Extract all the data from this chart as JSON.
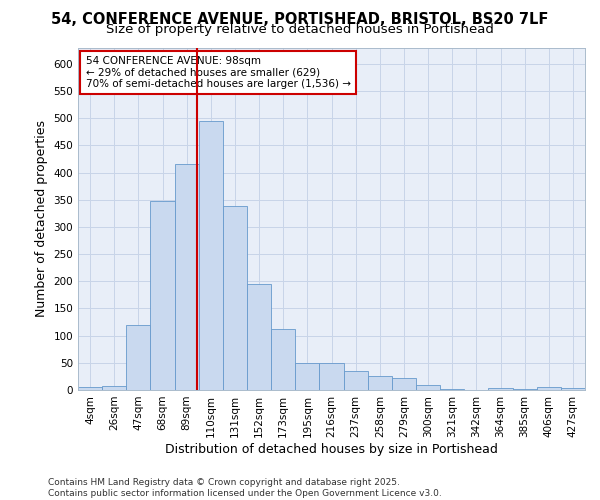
{
  "title_line1": "54, CONFERENCE AVENUE, PORTISHEAD, BRISTOL, BS20 7LF",
  "title_line2": "Size of property relative to detached houses in Portishead",
  "xlabel": "Distribution of detached houses by size in Portishead",
  "ylabel": "Number of detached properties",
  "categories": [
    "4sqm",
    "26sqm",
    "47sqm",
    "68sqm",
    "89sqm",
    "110sqm",
    "131sqm",
    "152sqm",
    "173sqm",
    "195sqm",
    "216sqm",
    "237sqm",
    "258sqm",
    "279sqm",
    "300sqm",
    "321sqm",
    "342sqm",
    "364sqm",
    "385sqm",
    "406sqm",
    "427sqm"
  ],
  "values": [
    5,
    7,
    120,
    348,
    415,
    495,
    338,
    195,
    113,
    50,
    50,
    35,
    25,
    22,
    10,
    2,
    0,
    3,
    2,
    6,
    4
  ],
  "bar_color": "#c9d9ef",
  "bar_edge_color": "#6699cc",
  "grid_color": "#c8d4e8",
  "plot_bg_color": "#e8eef8",
  "ref_line_color": "#cc0000",
  "annotation_text": "54 CONFERENCE AVENUE: 98sqm\n← 29% of detached houses are smaller (629)\n70% of semi-detached houses are larger (1,536) →",
  "annotation_box_edgecolor": "#cc0000",
  "ylim": [
    0,
    630
  ],
  "yticks": [
    0,
    50,
    100,
    150,
    200,
    250,
    300,
    350,
    400,
    450,
    500,
    550,
    600
  ],
  "footer_text": "Contains HM Land Registry data © Crown copyright and database right 2025.\nContains public sector information licensed under the Open Government Licence v3.0.",
  "title_fontsize": 10.5,
  "subtitle_fontsize": 9.5,
  "tick_fontsize": 7.5,
  "label_fontsize": 9,
  "footer_fontsize": 6.5,
  "annot_fontsize": 7.5
}
